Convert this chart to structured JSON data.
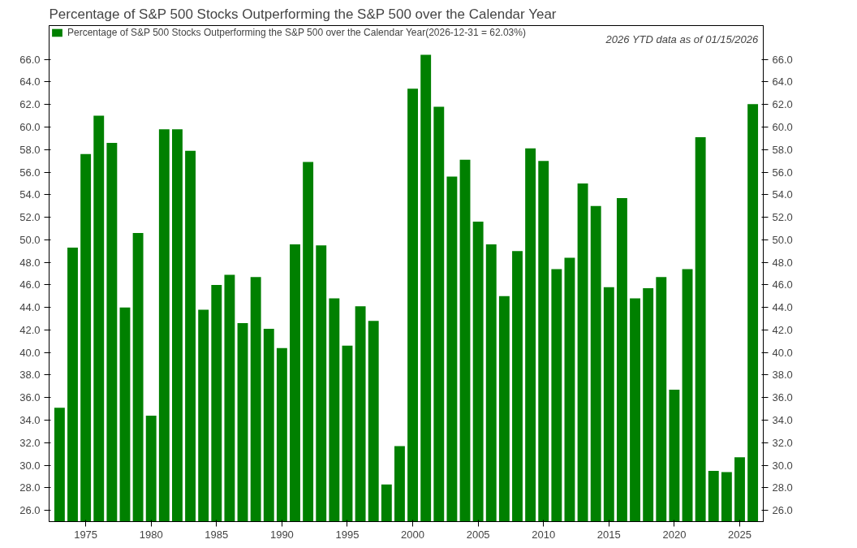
{
  "chart_data": {
    "type": "bar",
    "title": "Percentage of S&P 500 Stocks Outperforming the S&P 500 over the Calendar Year",
    "x": [
      1973,
      1974,
      1975,
      1976,
      1977,
      1978,
      1979,
      1980,
      1981,
      1982,
      1983,
      1984,
      1985,
      1986,
      1987,
      1988,
      1989,
      1990,
      1991,
      1992,
      1993,
      1994,
      1995,
      1996,
      1997,
      1998,
      1999,
      2000,
      2001,
      2002,
      2003,
      2004,
      2005,
      2006,
      2007,
      2008,
      2009,
      2010,
      2011,
      2012,
      2013,
      2014,
      2015,
      2016,
      2017,
      2018,
      2019,
      2020,
      2021,
      2022,
      2023,
      2024,
      2025,
      2026
    ],
    "series": [
      {
        "name": "Percentage of S&P 500 Stocks Outperforming the S&P 500 over the Calendar Year(2026-12-31 = 62.03%)",
        "color": "#008000",
        "values": [
          35.1,
          49.3,
          57.6,
          61.0,
          58.6,
          44.0,
          50.6,
          34.4,
          59.8,
          59.8,
          57.9,
          43.8,
          46.0,
          46.9,
          42.6,
          46.7,
          42.1,
          40.4,
          49.6,
          56.9,
          49.5,
          44.8,
          40.6,
          44.1,
          42.8,
          28.3,
          31.7,
          63.4,
          66.4,
          61.8,
          55.6,
          57.1,
          51.6,
          49.6,
          45.0,
          49.0,
          58.1,
          57.0,
          47.4,
          48.4,
          55.0,
          53.0,
          45.8,
          53.7,
          44.8,
          45.7,
          46.7,
          36.7,
          47.4,
          59.1,
          29.5,
          29.4,
          30.7,
          62.03
        ]
      }
    ],
    "ylim": [
      25,
      69
    ],
    "yticks": [
      {
        "value": 26,
        "label": "26.0"
      },
      {
        "value": 28,
        "label": "28.0"
      },
      {
        "value": 30,
        "label": "30.0"
      },
      {
        "value": 32,
        "label": "32.0"
      },
      {
        "value": 34,
        "label": "34.0"
      },
      {
        "value": 36,
        "label": "36.0"
      },
      {
        "value": 38,
        "label": "38.0"
      },
      {
        "value": 40,
        "label": "40.0"
      },
      {
        "value": 42,
        "label": "42.0"
      },
      {
        "value": 44,
        "label": "44.0"
      },
      {
        "value": 46,
        "label": "46.0"
      },
      {
        "value": 48,
        "label": "48.0"
      },
      {
        "value": 50,
        "label": "50.0"
      },
      {
        "value": 52,
        "label": "52.0"
      },
      {
        "value": 54,
        "label": "54.0"
      },
      {
        "value": 56,
        "label": "56.0"
      },
      {
        "value": 58,
        "label": "58.0"
      },
      {
        "value": 60,
        "label": "60.0"
      },
      {
        "value": 62,
        "label": "62.0"
      },
      {
        "value": 64,
        "label": "64.0"
      },
      {
        "value": 66,
        "label": "66.0"
      }
    ],
    "y2lim": [
      25,
      69
    ],
    "y2ticks": [
      {
        "value": 26,
        "label": "26.0"
      },
      {
        "value": 28,
        "label": "28.0"
      },
      {
        "value": 30,
        "label": "30.0"
      },
      {
        "value": 32,
        "label": "32.0"
      },
      {
        "value": 34,
        "label": "34.0"
      },
      {
        "value": 36,
        "label": "36.0"
      },
      {
        "value": 38,
        "label": "38.0"
      },
      {
        "value": 40,
        "label": "40.0"
      },
      {
        "value": 42,
        "label": "42.0"
      },
      {
        "value": 44,
        "label": "44.0"
      },
      {
        "value": 46,
        "label": "46.0"
      },
      {
        "value": 48,
        "label": "48.0"
      },
      {
        "value": 50,
        "label": "50.0"
      },
      {
        "value": 52,
        "label": "52.0"
      },
      {
        "value": 54,
        "label": "54.0"
      },
      {
        "value": 56,
        "label": "56.0"
      },
      {
        "value": 58,
        "label": "58.0"
      },
      {
        "value": 60,
        "label": "60.0"
      },
      {
        "value": 62,
        "label": "62.0"
      },
      {
        "value": 64,
        "label": "64.0"
      },
      {
        "value": 66,
        "label": "66.0"
      }
    ],
    "xlim": [
      1972.2,
      2026.8
    ],
    "xticks": [
      1975,
      1980,
      1985,
      1990,
      1995,
      2000,
      2005,
      2010,
      2015,
      2020,
      2025
    ],
    "annotations": [
      "2026 YTD data as of 01/15/2026"
    ],
    "legend": "top left",
    "grid": false
  }
}
